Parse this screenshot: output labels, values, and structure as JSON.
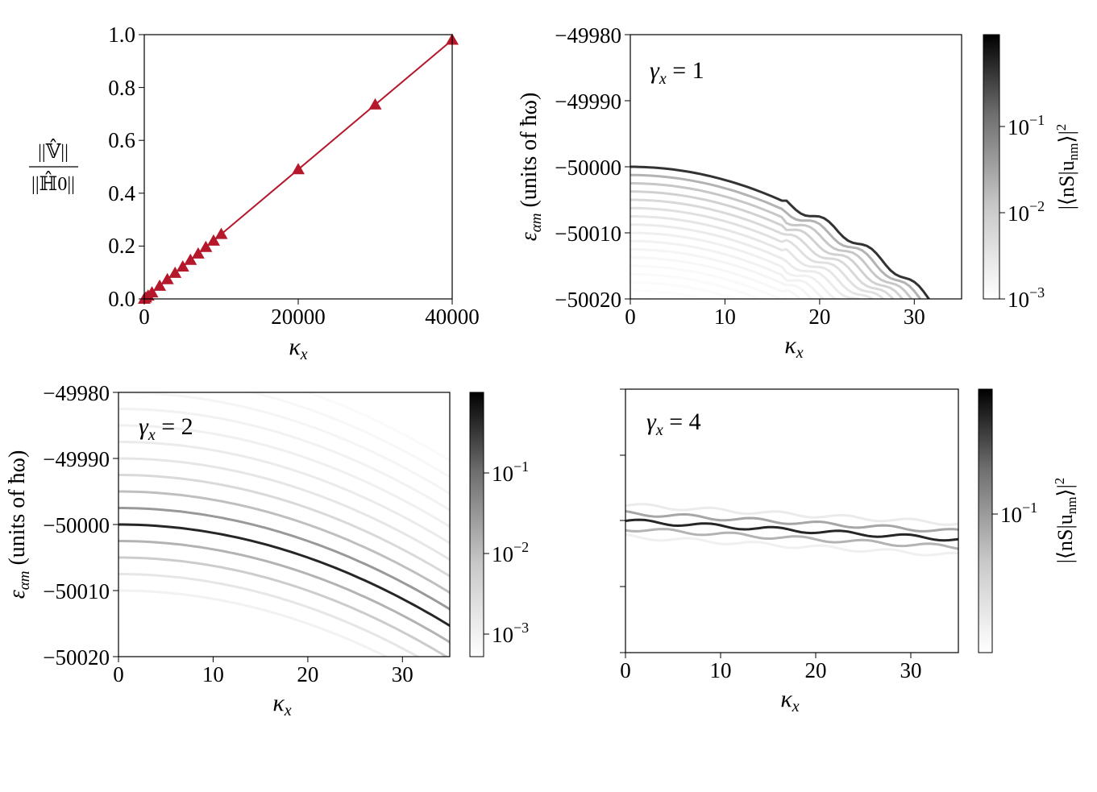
{
  "colors": {
    "line": "#b5172b",
    "ink": "#000000",
    "band": "#333333"
  },
  "labels": {
    "kappa": "κx",
    "kappa_main": "κ",
    "kappa_sub": "x",
    "ylabel_energy": "εαm (units of ħω)",
    "ylabel_energy_main": "ε",
    "ylabel_energy_sub": "αm",
    "ylabel_energy_rest": " (units of ħω)",
    "ratio_numerator": "||𝕍̂||",
    "ratio_denominator": "||ℍ̂0||",
    "colorbar_label": "|⟨nS|unm⟩|²",
    "colorbar_label_text": "|⟨nS|u",
    "colorbar_label_sub": "nm",
    "colorbar_label_close": "⟩|",
    "colorbar_label_sup": "2"
  },
  "chart_data": [
    {
      "id": "panel-a",
      "type": "line",
      "xlabel": "κx",
      "ylabel": "||𝕍̂|| / ||ℍ̂0||",
      "xlim": [
        0,
        40000
      ],
      "ylim": [
        0.0,
        1.0
      ],
      "xticks": [
        "0",
        "20000",
        "40000"
      ],
      "yticks": [
        "0.0",
        "0.2",
        "0.4",
        "0.6",
        "0.8",
        "1.0"
      ],
      "marker": "triangle",
      "series": [
        {
          "x": [
            0,
            200,
            500,
            1000,
            2000,
            3000,
            4000,
            5000,
            6000,
            7000,
            8000,
            9000,
            10000,
            20000,
            30000,
            40000
          ],
          "y": [
            0.0,
            0.005,
            0.012,
            0.024,
            0.049,
            0.074,
            0.098,
            0.122,
            0.147,
            0.171,
            0.196,
            0.22,
            0.245,
            0.49,
            0.735,
            0.98
          ]
        }
      ]
    },
    {
      "id": "panel-b",
      "type": "heatmap",
      "annotation": "γx = 1",
      "annotation_main": "γ",
      "annotation_sub": "x",
      "annotation_rest": " = 1",
      "xlim": [
        0,
        35
      ],
      "ylim": [
        -50020,
        -49980
      ],
      "xticks": [
        "0",
        "10",
        "20",
        "30"
      ],
      "yticks": [
        "−49980",
        "−49990",
        "−50000",
        "−50010",
        "−50020"
      ],
      "colorbar": {
        "scale": "log",
        "min": 0.001,
        "max": 0.8,
        "ticks": [
          "10",
          "10",
          "10"
        ],
        "tick_exponents": [
          "−1",
          "−2",
          "−3"
        ]
      },
      "band_curvature": -0.02,
      "band_offsets": [
        0,
        -1.25,
        -2.5,
        -3.75,
        -5,
        -6.25,
        -7.5,
        -8.75,
        -10,
        -11.25,
        -12.5,
        -13.75,
        -15,
        -16.25,
        -17.5,
        -18.75,
        -20,
        -21.25
      ],
      "band_intensity": [
        0.8,
        0.3,
        0.22,
        0.18,
        0.15,
        0.12,
        0.1,
        0.08,
        0.06,
        0.05,
        0.04,
        0.03,
        0.025,
        0.02,
        0.015,
        0.01,
        0.008,
        0.005
      ]
    },
    {
      "id": "panel-c",
      "type": "heatmap",
      "annotation": "γx = 2",
      "annotation_main": "γ",
      "annotation_sub": "x",
      "annotation_rest": " = 2",
      "xlim": [
        0,
        35
      ],
      "ylim": [
        -50020,
        -49980
      ],
      "xticks": [
        "0",
        "10",
        "20",
        "30"
      ],
      "yticks": [
        "−49980",
        "−49990",
        "−50000",
        "−50010",
        "−50020"
      ],
      "colorbar": {
        "scale": "log",
        "min": 0.0005,
        "max": 0.8,
        "ticks": [
          "10",
          "10",
          "10"
        ],
        "tick_exponents": [
          "−1",
          "−2",
          "−3"
        ]
      },
      "band_curvature": -0.0125,
      "band_offsets": [
        0,
        2.5,
        5,
        -2.5,
        -5,
        -7.5,
        -10,
        7.5,
        10,
        12.5,
        15,
        17.5,
        20,
        22.5,
        25
      ],
      "band_intensity": [
        0.85,
        0.4,
        0.25,
        0.3,
        0.2,
        0.1,
        0.05,
        0.15,
        0.1,
        0.08,
        0.06,
        0.05,
        0.04,
        0.03,
        0.02
      ]
    },
    {
      "id": "panel-d",
      "type": "heatmap",
      "annotation": "γx = 4",
      "annotation_main": "γ",
      "annotation_sub": "x",
      "annotation_rest": " = 4",
      "xlim": [
        0,
        35
      ],
      "xticks": [
        "0",
        "10",
        "20",
        "30"
      ],
      "colorbar": {
        "scale": "log",
        "min": 0.003,
        "max": 0.8,
        "ticks": [
          "10"
        ],
        "tick_exponents": [
          "−1"
        ]
      },
      "band_offsets": [
        0,
        1.2,
        -1.2,
        2.4,
        -2.4
      ],
      "band_intensity": [
        0.85,
        0.35,
        0.3,
        0.08,
        0.06
      ]
    }
  ]
}
